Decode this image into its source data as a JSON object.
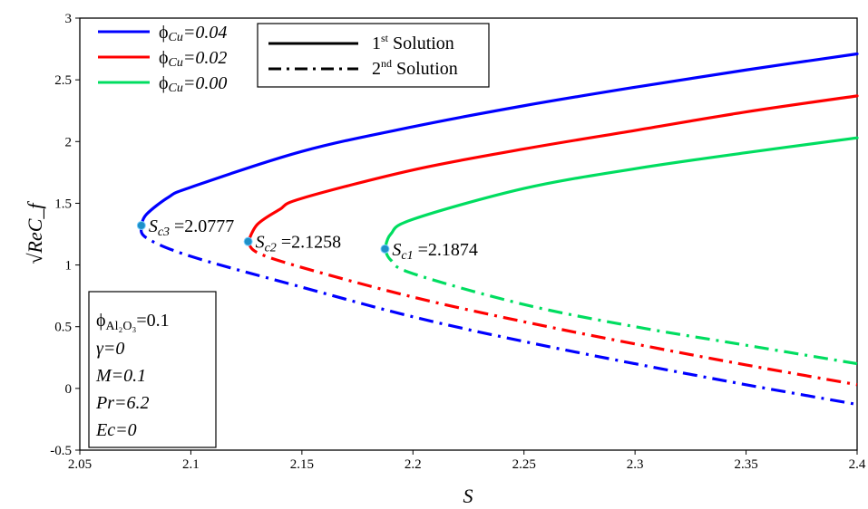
{
  "chart_data": {
    "type": "line",
    "xlabel": "S",
    "ylabel": "√ReC_f",
    "xlim": [
      2.05,
      2.4
    ],
    "ylim": [
      -0.5,
      3
    ],
    "xticks": [
      "2.05",
      "2.1",
      "2.15",
      "2.2",
      "2.25",
      "2.3",
      "2.35",
      "2.4"
    ],
    "yticks": [
      "-0.5",
      "0",
      "0.5",
      "1",
      "1.5",
      "2",
      "2.5",
      "3"
    ],
    "grid": false,
    "series": [
      {
        "name": "ϕCu=0.04",
        "color": "#0000ff",
        "first_solution": [
          [
            2.0777,
            1.32
          ],
          [
            2.08,
            1.41
          ],
          [
            2.09,
            1.55
          ],
          [
            2.1,
            1.63
          ],
          [
            2.15,
            1.92
          ],
          [
            2.2,
            2.12
          ],
          [
            2.25,
            2.29
          ],
          [
            2.3,
            2.44
          ],
          [
            2.35,
            2.58
          ],
          [
            2.4,
            2.71
          ]
        ],
        "second_solution": [
          [
            2.0777,
            1.32
          ],
          [
            2.08,
            1.22
          ],
          [
            2.1,
            1.07
          ],
          [
            2.15,
            0.82
          ],
          [
            2.2,
            0.58
          ],
          [
            2.25,
            0.38
          ],
          [
            2.3,
            0.2
          ],
          [
            2.35,
            0.03
          ],
          [
            2.4,
            -0.13
          ]
        ]
      },
      {
        "name": "ϕCu=0.02",
        "color": "#ff0000",
        "first_solution": [
          [
            2.1258,
            1.19
          ],
          [
            2.13,
            1.33
          ],
          [
            2.14,
            1.45
          ],
          [
            2.15,
            1.54
          ],
          [
            2.2,
            1.77
          ],
          [
            2.25,
            1.94
          ],
          [
            2.3,
            2.09
          ],
          [
            2.35,
            2.24
          ],
          [
            2.4,
            2.37
          ]
        ],
        "second_solution": [
          [
            2.1258,
            1.19
          ],
          [
            2.13,
            1.1
          ],
          [
            2.15,
            0.98
          ],
          [
            2.2,
            0.74
          ],
          [
            2.25,
            0.54
          ],
          [
            2.3,
            0.36
          ],
          [
            2.35,
            0.19
          ],
          [
            2.4,
            0.03
          ]
        ]
      },
      {
        "name": "ϕCu=0.00",
        "color": "#00dd60",
        "first_solution": [
          [
            2.1874,
            1.13
          ],
          [
            2.19,
            1.25
          ],
          [
            2.2,
            1.37
          ],
          [
            2.25,
            1.62
          ],
          [
            2.3,
            1.78
          ],
          [
            2.35,
            1.91
          ],
          [
            2.4,
            2.03
          ]
        ],
        "second_solution": [
          [
            2.1874,
            1.13
          ],
          [
            2.19,
            1.04
          ],
          [
            2.2,
            0.93
          ],
          [
            2.25,
            0.68
          ],
          [
            2.3,
            0.5
          ],
          [
            2.35,
            0.35
          ],
          [
            2.4,
            0.2
          ]
        ]
      }
    ],
    "critical_points": [
      {
        "x": 2.0777,
        "y": 1.32,
        "sub": "c3",
        "value": "=2.0777"
      },
      {
        "x": 2.1258,
        "y": 1.19,
        "sub": "c2",
        "value": "=2.1258"
      },
      {
        "x": 2.1874,
        "y": 1.13,
        "sub": "c1",
        "value": "=2.1874"
      }
    ],
    "legend_series": [
      {
        "phi": "ϕ",
        "sub": "Cu",
        "value": "=0.04"
      },
      {
        "phi": "ϕ",
        "sub": "Cu",
        "value": "=0.02"
      },
      {
        "phi": "ϕ",
        "sub": "Cu",
        "value": "=0.00"
      }
    ],
    "legend_style": [
      {
        "num": "1",
        "sup": "st",
        "label": " Solution"
      },
      {
        "num": "2",
        "sup": "nd",
        "label": " Solution"
      }
    ],
    "parameter_box": {
      "phi_line": {
        "phi": "ϕ",
        "sub": "Al₂O₃",
        "value": "=0.1"
      },
      "lines": [
        "γ=0",
        "M=0.1",
        "Pr=6.2",
        "Ec=0"
      ]
    },
    "marker_color": "#1e90c8"
  }
}
